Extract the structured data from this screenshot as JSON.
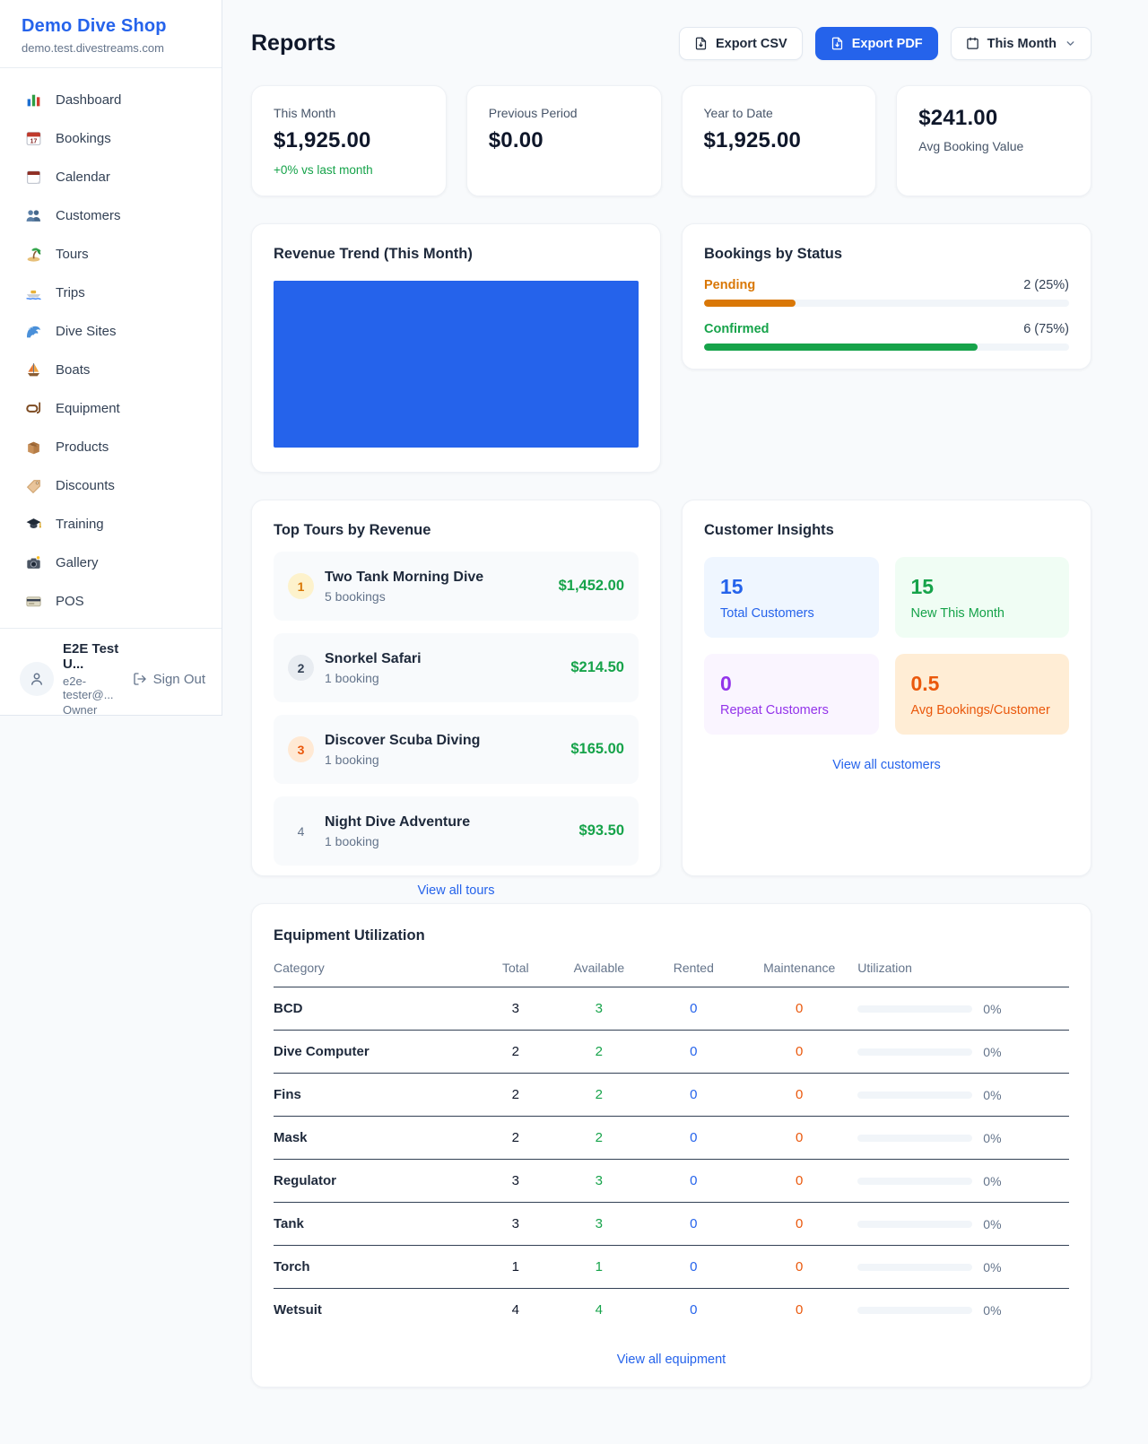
{
  "sidebar": {
    "shop_name": "Demo Dive Shop",
    "domain": "demo.test.divestreams.com",
    "items": [
      {
        "icon": "dashboard-icon",
        "label": "Dashboard"
      },
      {
        "icon": "bookings-icon",
        "label": "Bookings"
      },
      {
        "icon": "calendar-icon",
        "label": "Calendar"
      },
      {
        "icon": "customers-icon",
        "label": "Customers"
      },
      {
        "icon": "tours-icon",
        "label": "Tours"
      },
      {
        "icon": "trips-icon",
        "label": "Trips"
      },
      {
        "icon": "dive-sites-icon",
        "label": "Dive Sites"
      },
      {
        "icon": "boats-icon",
        "label": "Boats"
      },
      {
        "icon": "equipment-icon",
        "label": "Equipment"
      },
      {
        "icon": "products-icon",
        "label": "Products"
      },
      {
        "icon": "discounts-icon",
        "label": "Discounts"
      },
      {
        "icon": "training-icon",
        "label": "Training"
      },
      {
        "icon": "gallery-icon",
        "label": "Gallery"
      },
      {
        "icon": "pos-icon",
        "label": "POS"
      }
    ],
    "user": {
      "name": "E2E Test U...",
      "email": "e2e-tester@...",
      "role": "Owner",
      "sign_out": "Sign Out"
    }
  },
  "header": {
    "title": "Reports",
    "export_csv": "Export CSV",
    "export_pdf": "Export PDF",
    "period": "This Month"
  },
  "stats": [
    {
      "label": "This Month",
      "value": "$1,925.00",
      "delta": "+0% vs last month"
    },
    {
      "label": "Previous Period",
      "value": "$0.00"
    },
    {
      "label": "Year to Date",
      "value": "$1,925.00"
    },
    {
      "label": "Avg Booking Value",
      "value": "$241.00"
    }
  ],
  "revenue_trend": {
    "title": "Revenue Trend (This Month)",
    "bar_color": "#2563eb"
  },
  "bookings_by_status": {
    "title": "Bookings by Status",
    "rows": [
      {
        "label": "Pending",
        "count": "2 (25%)",
        "pct": 25,
        "color": "#d97706"
      },
      {
        "label": "Confirmed",
        "count": "6 (75%)",
        "pct": 75,
        "color": "#16a34a"
      }
    ]
  },
  "top_tours": {
    "title": "Top Tours by Revenue",
    "items": [
      {
        "rank": "1",
        "name": "Two Tank Morning Dive",
        "bookings": "5 bookings",
        "amount": "$1,452.00"
      },
      {
        "rank": "2",
        "name": "Snorkel Safari",
        "bookings": "1 booking",
        "amount": "$214.50"
      },
      {
        "rank": "3",
        "name": "Discover Scuba Diving",
        "bookings": "1 booking",
        "amount": "$165.00"
      },
      {
        "rank": "4",
        "name": "Night Dive Adventure",
        "bookings": "1 booking",
        "amount": "$93.50"
      }
    ],
    "link": "View all tours"
  },
  "customer_insights": {
    "title": "Customer Insights",
    "tiles": [
      {
        "value": "15",
        "label": "Total Customers",
        "color": "#2563eb"
      },
      {
        "value": "15",
        "label": "New This Month",
        "color": "#16a34a"
      },
      {
        "value": "0",
        "label": "Repeat Customers",
        "color": "#9333ea"
      },
      {
        "value": "0.5",
        "label": "Avg Bookings/Customer",
        "color": "#ea580c"
      }
    ],
    "link": "View all customers"
  },
  "equipment": {
    "title": "Equipment Utilization",
    "columns": [
      "Category",
      "Total",
      "Available",
      "Rented",
      "Maintenance",
      "Utilization"
    ],
    "rows": [
      {
        "category": "BCD",
        "total": "3",
        "available": "3",
        "rented": "0",
        "maintenance": "0",
        "utilization": "0%"
      },
      {
        "category": "Dive Computer",
        "total": "2",
        "available": "2",
        "rented": "0",
        "maintenance": "0",
        "utilization": "0%"
      },
      {
        "category": "Fins",
        "total": "2",
        "available": "2",
        "rented": "0",
        "maintenance": "0",
        "utilization": "0%"
      },
      {
        "category": "Mask",
        "total": "2",
        "available": "2",
        "rented": "0",
        "maintenance": "0",
        "utilization": "0%"
      },
      {
        "category": "Regulator",
        "total": "3",
        "available": "3",
        "rented": "0",
        "maintenance": "0",
        "utilization": "0%"
      },
      {
        "category": "Tank",
        "total": "3",
        "available": "3",
        "rented": "0",
        "maintenance": "0",
        "utilization": "0%"
      },
      {
        "category": "Torch",
        "total": "1",
        "available": "1",
        "rented": "0",
        "maintenance": "0",
        "utilization": "0%"
      },
      {
        "category": "Wetsuit",
        "total": "4",
        "available": "4",
        "rented": "0",
        "maintenance": "0",
        "utilization": "0%"
      }
    ],
    "link": "View all equipment"
  }
}
